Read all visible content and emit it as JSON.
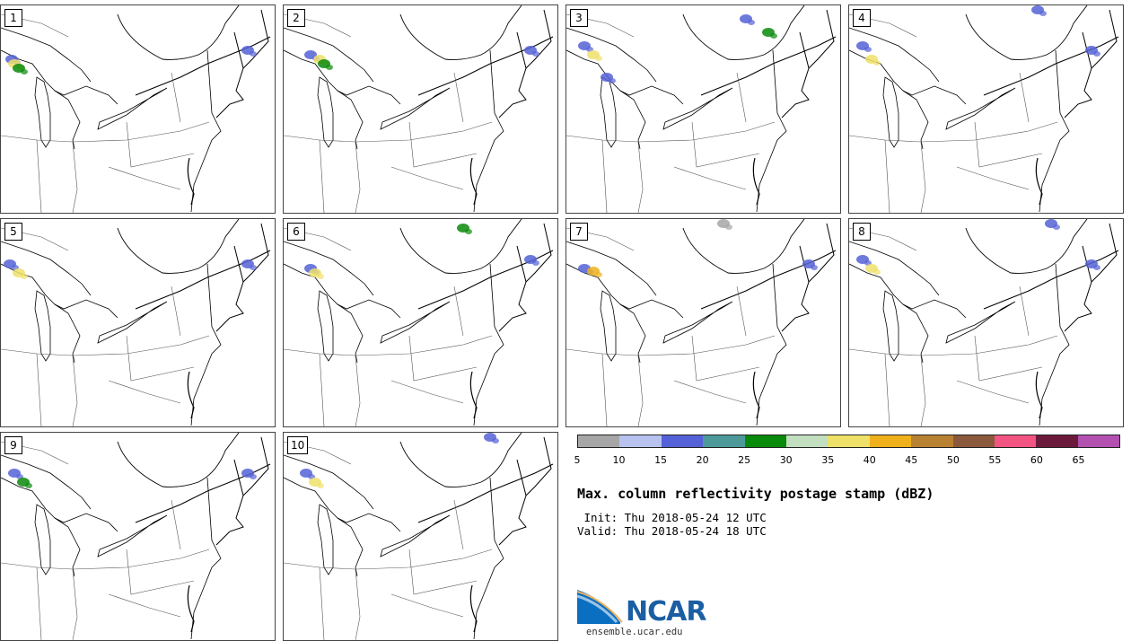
{
  "panels": [
    {
      "label": "1"
    },
    {
      "label": "2"
    },
    {
      "label": "3"
    },
    {
      "label": "4"
    },
    {
      "label": "5"
    },
    {
      "label": "6"
    },
    {
      "label": "7"
    },
    {
      "label": "8"
    },
    {
      "label": "9"
    },
    {
      "label": "10"
    }
  ],
  "colorbar": {
    "ticks": [
      "5",
      "10",
      "15",
      "20",
      "25",
      "30",
      "35",
      "40",
      "45",
      "50",
      "55",
      "60",
      "65"
    ],
    "colors": [
      "#a6a6a6",
      "#b7c3ee",
      "#5561d6",
      "#4e9a9b",
      "#0a8a0a",
      "#c2dfc0",
      "#efe06a",
      "#efb01c",
      "#b98132",
      "#8b5a3c",
      "#f25582",
      "#6b1a3c",
      "#b351b0"
    ]
  },
  "title": "Max. column reflectivity postage stamp (dBZ)",
  "init": " Init: Thu 2018-05-24 12 UTC",
  "valid": "Valid: Thu 2018-05-24 18 UTC",
  "logo": {
    "name": "NCAR",
    "url": "ensemble.ucar.edu"
  }
}
